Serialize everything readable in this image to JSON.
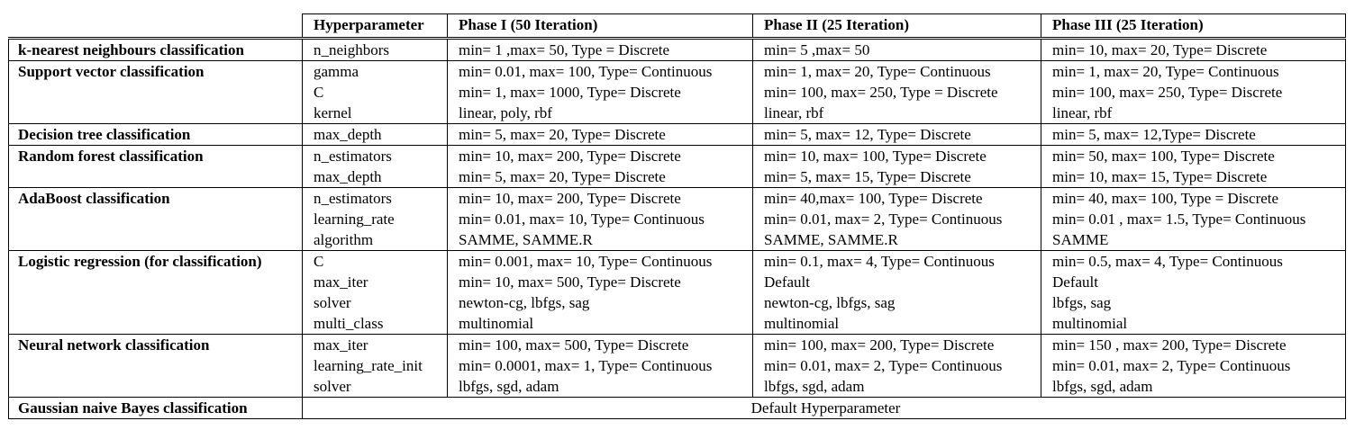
{
  "table": {
    "headers": [
      "",
      "Hyperparameter",
      "Phase I (50 Iteration)",
      "Phase II (25 Iteration)",
      "Phase III (25 Iteration)"
    ],
    "rows": [
      {
        "model": "k-nearest neighbours classification",
        "params": [
          "n_neighbors"
        ],
        "phase1": [
          "min= 1 ,max= 50, Type = Discrete"
        ],
        "phase2": [
          "min= 5 ,max= 50"
        ],
        "phase3": [
          "min= 10, max= 20, Type= Discrete"
        ]
      },
      {
        "model": "Support vector classification",
        "params": [
          "gamma",
          "C",
          "kernel"
        ],
        "phase1": [
          "min= 0.01, max= 100, Type= Continuous",
          "min= 1, max= 1000, Type= Discrete",
          "linear, poly, rbf"
        ],
        "phase2": [
          "min= 1, max= 20, Type= Continuous",
          "min= 100, max= 250, Type = Discrete",
          "linear, rbf"
        ],
        "phase3": [
          "min= 1, max= 20, Type= Continuous",
          "min= 100, max= 250, Type= Discrete",
          "linear, rbf"
        ]
      },
      {
        "model": "Decision tree classification",
        "params": [
          "max_depth"
        ],
        "phase1": [
          "min= 5, max= 20, Type= Discrete"
        ],
        "phase2": [
          "min= 5, max= 12, Type= Discrete"
        ],
        "phase3": [
          "min= 5, max= 12,Type= Discrete"
        ]
      },
      {
        "model": "Random forest classification",
        "params": [
          "n_estimators",
          "max_depth"
        ],
        "phase1": [
          "min= 10, max= 200, Type= Discrete",
          "min= 5, max= 20, Type= Discrete"
        ],
        "phase2": [
          "min= 10, max= 100, Type= Discrete",
          "min= 5, max= 15, Type= Discrete"
        ],
        "phase3": [
          "min= 50, max= 100, Type= Discrete",
          "min= 10, max= 15, Type= Discrete"
        ]
      },
      {
        "model": "AdaBoost classification",
        "params": [
          "n_estimators",
          "learning_rate",
          "algorithm"
        ],
        "phase1": [
          "min= 10, max= 200, Type= Discrete",
          "min= 0.01, max= 10, Type= Continuous",
          "SAMME, SAMME.R"
        ],
        "phase2": [
          "min= 40,max= 100, Type= Discrete",
          "min= 0.01, max= 2, Type= Continuous",
          "SAMME, SAMME.R"
        ],
        "phase3": [
          "min= 40, max= 100, Type = Discrete",
          "min= 0.01 , max= 1.5, Type= Continuous",
          "SAMME"
        ]
      },
      {
        "model": "Logistic regression (for classification)",
        "params": [
          "C",
          "max_iter",
          "solver",
          "multi_class"
        ],
        "phase1": [
          "min= 0.001, max= 10, Type= Continuous",
          "min= 10, max= 500, Type= Discrete",
          "newton-cg, lbfgs, sag",
          "multinomial"
        ],
        "phase2": [
          "min= 0.1, max= 4, Type= Continuous",
          "Default",
          "newton-cg, lbfgs, sag",
          "multinomial"
        ],
        "phase3": [
          "min= 0.5, max= 4, Type= Continuous",
          "Default",
          "lbfgs, sag",
          "multinomial"
        ]
      },
      {
        "model": "Neural network classification",
        "params": [
          "max_iter",
          "learning_rate_init",
          "solver"
        ],
        "phase1": [
          "min= 100, max= 500, Type= Discrete",
          "min= 0.0001, max= 1, Type= Continuous",
          "lbfgs, sgd, adam"
        ],
        "phase2": [
          "min= 100, max= 200, Type= Discrete",
          "min= 0.01, max= 2, Type= Continuous",
          "lbfgs, sgd, adam"
        ],
        "phase3": [
          "min= 150 , max= 200, Type= Discrete",
          "min= 0.01, max= 2, Type= Continuous",
          "lbfgs, sgd, adam"
        ]
      }
    ],
    "last_row": {
      "model": "Gaussian naive Bayes classification",
      "note": "Default Hyperparameter"
    }
  }
}
